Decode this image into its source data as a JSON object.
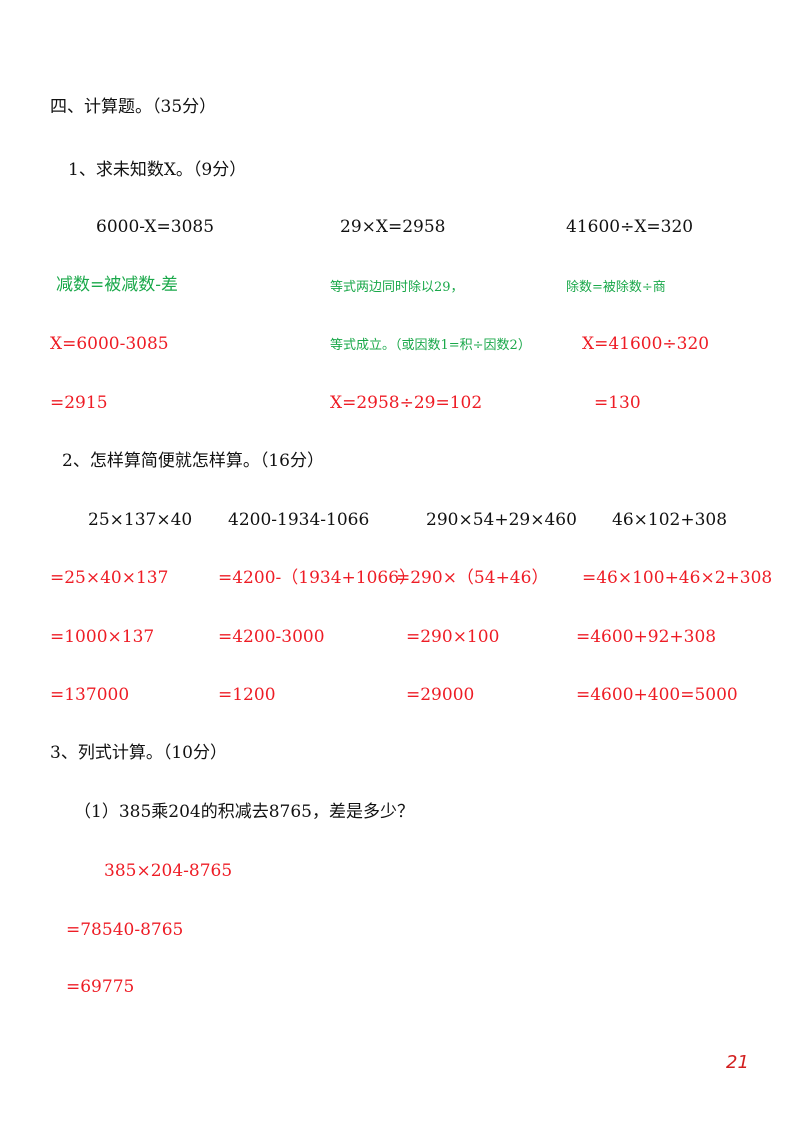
{
  "section_title": "四、计算题。（35分）",
  "part1": {
    "heading": "1、求未知数X。（9分）",
    "problems": [
      "6000-X=3085",
      "29×X=2958",
      "41600÷X=320"
    ],
    "hints": [
      "减数=被减数-差",
      "等式两边同时除以29，",
      "除数=被除数÷商"
    ],
    "hint2_line2": "等式成立。（或因数1=积÷因数2）",
    "solutions": {
      "p1": [
        "X=6000-3085",
        "=2915"
      ],
      "p2": [
        "X=2958÷29=102"
      ],
      "p3": [
        "X=41600÷320",
        "=130"
      ]
    }
  },
  "part2": {
    "heading": "2、怎样算简便就怎样算。（16分）",
    "problems": [
      "25×137×40",
      "4200-1934-1066",
      "290×54+29×460",
      "46×102+308"
    ],
    "steps": [
      [
        "=25×40×137",
        "=1000×137",
        "=137000"
      ],
      [
        "=4200-（1934+1066）",
        "=4200-3000",
        "=1200"
      ],
      [
        "=290×（54+46）",
        "=290×100",
        "=29000"
      ],
      [
        "=46×100+46×2+308",
        "=4600+92+308",
        "=4600+400=5000"
      ]
    ]
  },
  "part3": {
    "heading": "3、列式计算。（10分）",
    "question": "（1）385乘204的积减去8765，差是多少？",
    "steps": [
      "385×204-8765",
      "=78540-8765",
      "=69775"
    ]
  },
  "page_number": "21"
}
